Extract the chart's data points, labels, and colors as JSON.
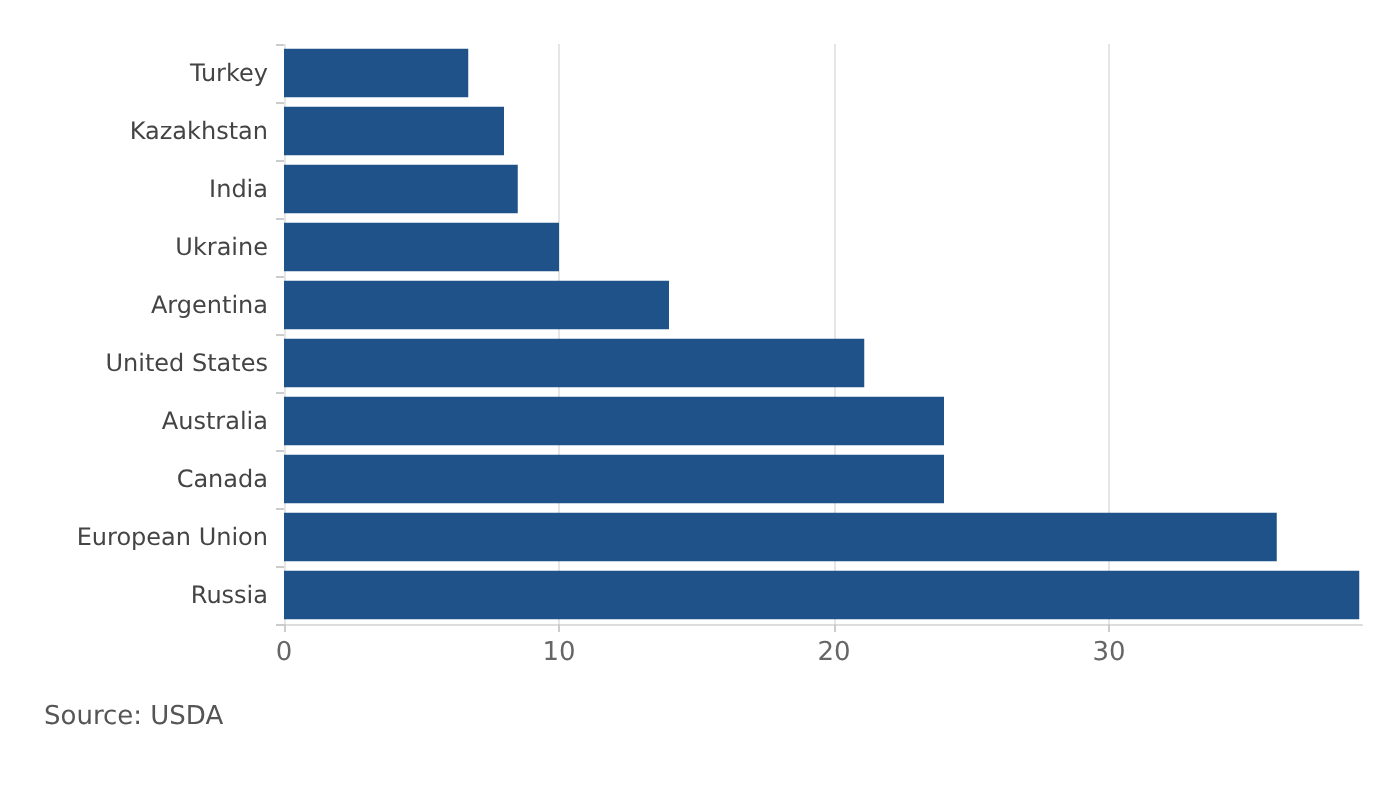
{
  "chart_data": {
    "type": "bar",
    "orientation": "horizontal",
    "categories": [
      "Turkey",
      "Kazakhstan",
      "India",
      "Ukraine",
      "Argentina",
      "United States",
      "Australia",
      "Canada",
      "European Union",
      "Russia"
    ],
    "values": [
      6.7,
      8.0,
      8.5,
      10.0,
      14.0,
      21.1,
      24.0,
      24.0,
      36.1,
      39.1
    ],
    "color": "#1f5289",
    "xlim": [
      0,
      39.2
    ],
    "xticks": [
      0,
      10,
      20,
      30
    ],
    "grid": "x",
    "annotations": [
      "Source: USDA"
    ]
  }
}
